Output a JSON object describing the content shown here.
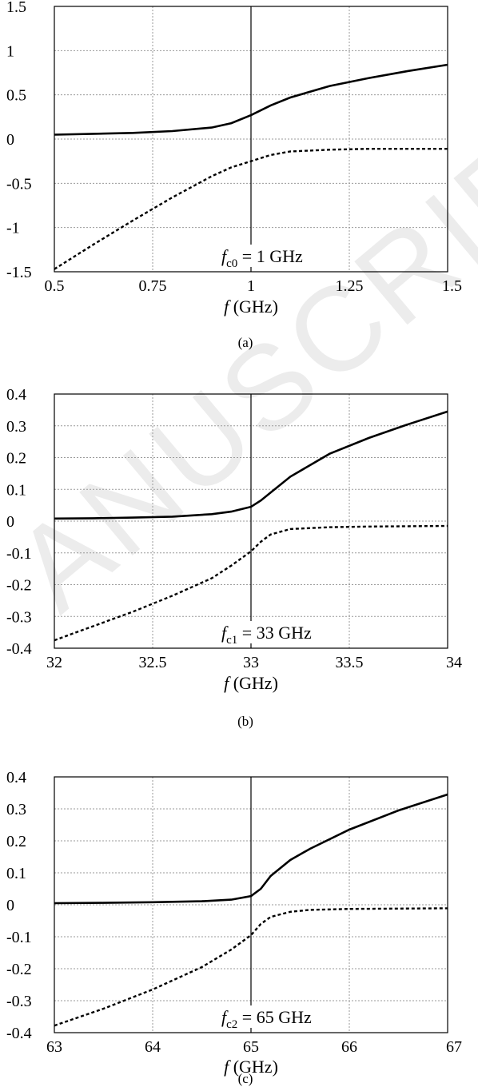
{
  "chart_data": [
    {
      "type": "line",
      "panel": "(a)",
      "caption": "(a)",
      "xlabel_italic": "f",
      "xlabel_rest": " (GHz)",
      "ylabel": "",
      "xlim": [
        0.5,
        1.5
      ],
      "ylim": [
        -1.5,
        1.5
      ],
      "xticks": [
        0.5,
        0.75,
        1,
        1.25,
        1.5
      ],
      "xtick_labels": [
        "0.5",
        "0.75",
        "1",
        "1.25",
        "1.5"
      ],
      "yticks": [
        1.5,
        1,
        0.5,
        0,
        -0.5,
        -1,
        -1.5
      ],
      "ytick_labels": [
        "1.5",
        "1",
        "0.5",
        "0",
        "-0.5",
        "-1",
        "-1.5"
      ],
      "grid": true,
      "vline_x": 1,
      "annotation": {
        "italic": "f",
        "sub": "c0",
        "text": " = 1 GHz"
      },
      "series": [
        {
          "style": "solid",
          "x": [
            0.5,
            0.6,
            0.7,
            0.8,
            0.9,
            0.95,
            1.0,
            1.05,
            1.1,
            1.2,
            1.3,
            1.4,
            1.5
          ],
          "y": [
            0.05,
            0.06,
            0.07,
            0.09,
            0.13,
            0.18,
            0.27,
            0.38,
            0.47,
            0.6,
            0.69,
            0.77,
            0.84
          ]
        },
        {
          "style": "dashed",
          "x": [
            0.5,
            0.6,
            0.7,
            0.8,
            0.9,
            0.95,
            1.0,
            1.05,
            1.1,
            1.2,
            1.3,
            1.4,
            1.5
          ],
          "y": [
            -1.47,
            -1.19,
            -0.92,
            -0.66,
            -0.42,
            -0.32,
            -0.25,
            -0.18,
            -0.14,
            -0.12,
            -0.11,
            -0.11,
            -0.11
          ]
        }
      ]
    },
    {
      "type": "line",
      "panel": "(b)",
      "caption": "(b)",
      "xlabel_italic": "f",
      "xlabel_rest": " (GHz)",
      "ylabel": "",
      "xlim": [
        32,
        34
      ],
      "ylim": [
        -0.4,
        0.4
      ],
      "xticks": [
        32,
        32.5,
        33,
        33.5,
        34
      ],
      "xtick_labels": [
        "32",
        "32.5",
        "33",
        "33.5",
        "34"
      ],
      "yticks": [
        0.4,
        0.3,
        0.2,
        0.1,
        0,
        -0.1,
        -0.2,
        -0.3,
        -0.4
      ],
      "ytick_labels": [
        "0.4",
        "0.3",
        "0.2",
        "0.1",
        "0",
        "-0.1",
        "-0.2",
        "-0.3",
        "-0.4"
      ],
      "grid": true,
      "vline_x": 33,
      "annotation": {
        "italic": "f",
        "sub": "c1",
        "text": " = 33 GHz"
      },
      "series": [
        {
          "style": "solid",
          "x": [
            32,
            32.2,
            32.4,
            32.6,
            32.8,
            32.9,
            33.0,
            33.05,
            33.1,
            33.2,
            33.4,
            33.6,
            33.8,
            34
          ],
          "y": [
            0.008,
            0.009,
            0.011,
            0.014,
            0.022,
            0.03,
            0.045,
            0.065,
            0.09,
            0.14,
            0.212,
            0.262,
            0.305,
            0.345
          ]
        },
        {
          "style": "dashed",
          "x": [
            32,
            32.2,
            32.4,
            32.6,
            32.8,
            32.9,
            33.0,
            33.05,
            33.1,
            33.2,
            33.4,
            33.6,
            33.8,
            34
          ],
          "y": [
            -0.375,
            -0.33,
            -0.285,
            -0.235,
            -0.18,
            -0.14,
            -0.095,
            -0.065,
            -0.042,
            -0.025,
            -0.019,
            -0.017,
            -0.016,
            -0.015
          ]
        }
      ]
    },
    {
      "type": "line",
      "panel": "(c)",
      "caption": "(c)",
      "xlabel_italic": "f",
      "xlabel_rest": " (GHz)",
      "ylabel": "",
      "xlim": [
        63,
        67
      ],
      "ylim": [
        -0.4,
        0.4
      ],
      "xticks": [
        63,
        64,
        65,
        66,
        67
      ],
      "xtick_labels": [
        "63",
        "64",
        "65",
        "66",
        "67"
      ],
      "yticks": [
        0.4,
        0.3,
        0.2,
        0.1,
        0,
        -0.1,
        -0.2,
        -0.3,
        -0.4
      ],
      "ytick_labels": [
        "0.4",
        "0.3",
        "0.2",
        "0.1",
        "0",
        "-0.1",
        "-0.2",
        "-0.3",
        "-0.4"
      ],
      "grid": true,
      "vline_x": 65,
      "annotation": {
        "italic": "f",
        "sub": "c2",
        "text": " = 65 GHz"
      },
      "series": [
        {
          "style": "solid",
          "x": [
            63,
            63.5,
            64,
            64.5,
            64.8,
            65.0,
            65.1,
            65.2,
            65.4,
            65.6,
            66,
            66.5,
            67
          ],
          "y": [
            0.005,
            0.006,
            0.008,
            0.011,
            0.016,
            0.027,
            0.05,
            0.09,
            0.14,
            0.175,
            0.235,
            0.295,
            0.345
          ]
        },
        {
          "style": "dashed",
          "x": [
            63,
            63.5,
            64,
            64.5,
            64.8,
            65.0,
            65.1,
            65.2,
            65.4,
            65.6,
            66,
            66.5,
            67
          ],
          "y": [
            -0.378,
            -0.325,
            -0.265,
            -0.195,
            -0.14,
            -0.095,
            -0.06,
            -0.038,
            -0.022,
            -0.016,
            -0.013,
            -0.012,
            -0.011
          ]
        }
      ]
    }
  ],
  "watermark": "ANUSCRIPT"
}
